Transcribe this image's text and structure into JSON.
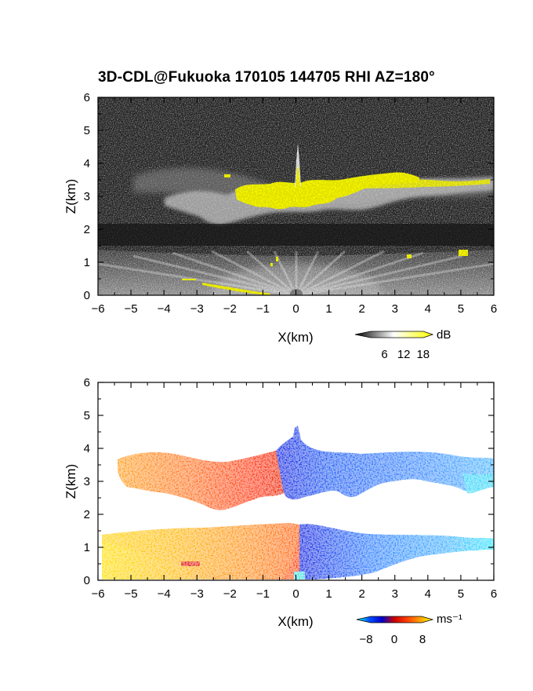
{
  "figure": {
    "title": "3D-CDL@Fukuoka 170105 144705 RHI AZ=180°"
  },
  "chart_data": [
    {
      "type": "heatmap",
      "quantity": "backscatter intensity",
      "xlabel": "X(km)",
      "ylabel": "Z(km)",
      "xlim": [
        -6,
        6
      ],
      "ylim": [
        0,
        6
      ],
      "xticks": [
        -6,
        -5,
        -4,
        -3,
        -2,
        -1,
        0,
        1,
        2,
        3,
        4,
        5,
        6
      ],
      "yticks": [
        0,
        1,
        2,
        3,
        4,
        5,
        6
      ],
      "colorbar": {
        "unit": "dB",
        "ticks": [
          6,
          12,
          18
        ],
        "range": [
          0,
          20
        ],
        "colors": [
          "#000000",
          "#ffffff",
          "#ffff00"
        ]
      },
      "features": [
        {
          "name": "cloud layer",
          "x_range": [
            -6,
            6
          ],
          "z_range": [
            2.1,
            3.8
          ],
          "intensity_db": 12
        },
        {
          "name": "strong echo core",
          "x_range": [
            -1.8,
            3.8
          ],
          "z_range": [
            2.6,
            3.8
          ],
          "intensity_db": 18
        },
        {
          "name": "boundary layer",
          "x_range": [
            -6,
            6
          ],
          "z_range": [
            0,
            1.4
          ],
          "intensity_db": 10
        },
        {
          "name": "vertical spike",
          "x": 0.1,
          "z_range": [
            3.0,
            4.6
          ],
          "intensity_db": 18
        }
      ]
    },
    {
      "type": "heatmap",
      "quantity": "radial velocity",
      "xlabel": "X(km)",
      "ylabel": "Z(km)",
      "xlim": [
        -6,
        6
      ],
      "ylim": [
        0,
        6
      ],
      "xticks": [
        -6,
        -5,
        -4,
        -3,
        -2,
        -1,
        0,
        1,
        2,
        3,
        4,
        5,
        6
      ],
      "yticks": [
        0,
        1,
        2,
        3,
        4,
        5,
        6
      ],
      "colorbar": {
        "unit": "ms⁻¹",
        "ticks": [
          -8,
          0,
          8
        ],
        "range": [
          -10,
          10
        ],
        "colors": [
          "#00ffff",
          "#0050ff",
          "#0000cc",
          "#cc0000",
          "#ff4000",
          "#ffa000",
          "#ffff00"
        ]
      },
      "features": [
        {
          "name": "upper layer west",
          "x_range": [
            -5.5,
            -0.6
          ],
          "z_range": [
            2.1,
            3.9
          ],
          "velocity": 6
        },
        {
          "name": "upper layer east",
          "x_range": [
            -0.6,
            6
          ],
          "z_range": [
            2.6,
            4.6
          ],
          "velocity": -5
        },
        {
          "name": "lower layer west",
          "x_range": [
            -6,
            0.2
          ],
          "z_range": [
            0,
            1.6
          ],
          "velocity": 6
        },
        {
          "name": "lower layer east",
          "x_range": [
            0.2,
            6
          ],
          "z_range": [
            0,
            1.7
          ],
          "velocity": -5
        }
      ]
    }
  ]
}
